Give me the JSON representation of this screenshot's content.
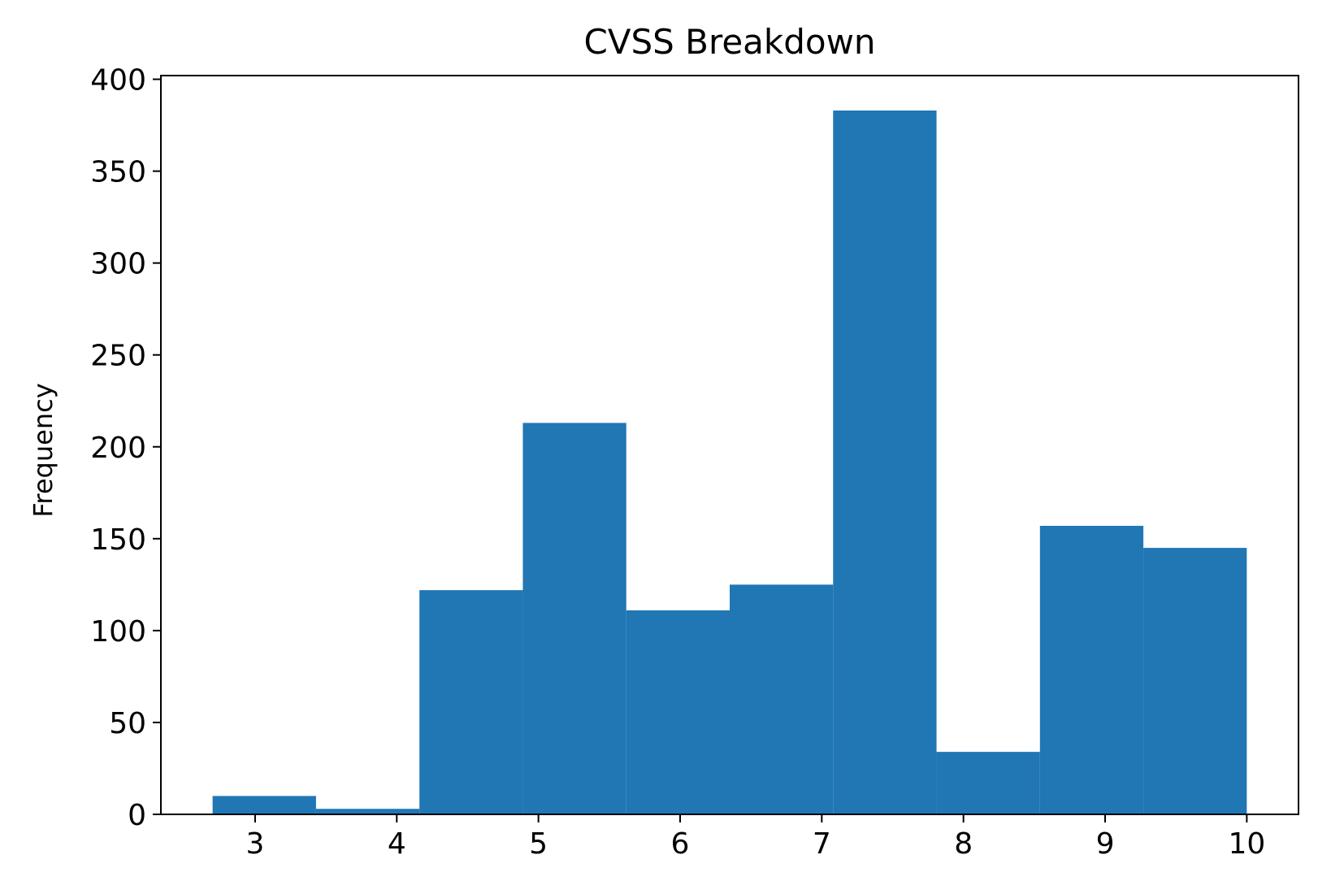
{
  "chart_data": {
    "type": "bar",
    "title": "CVSS Breakdown",
    "xlabel": "",
    "ylabel": "Frequency",
    "bins": [
      {
        "x0": 2.7,
        "x1": 3.43,
        "value": 10
      },
      {
        "x0": 3.43,
        "x1": 4.16,
        "value": 3
      },
      {
        "x0": 4.16,
        "x1": 4.89,
        "value": 122
      },
      {
        "x0": 4.89,
        "x1": 5.62,
        "value": 213
      },
      {
        "x0": 5.62,
        "x1": 6.35,
        "value": 111
      },
      {
        "x0": 6.35,
        "x1": 7.08,
        "value": 125
      },
      {
        "x0": 7.08,
        "x1": 7.81,
        "value": 383
      },
      {
        "x0": 7.81,
        "x1": 8.54,
        "value": 34
      },
      {
        "x0": 8.54,
        "x1": 9.27,
        "value": 157
      },
      {
        "x0": 9.27,
        "x1": 10.0,
        "value": 145
      }
    ],
    "xlim": [
      2.335,
      10.365
    ],
    "ylim": [
      0,
      402
    ],
    "xticks": [
      "3",
      "4",
      "5",
      "6",
      "7",
      "8",
      "9",
      "10"
    ],
    "yticks": [
      "0",
      "50",
      "100",
      "150",
      "200",
      "250",
      "300",
      "350",
      "400"
    ],
    "grid": false,
    "bar_color": "#2077b4"
  }
}
